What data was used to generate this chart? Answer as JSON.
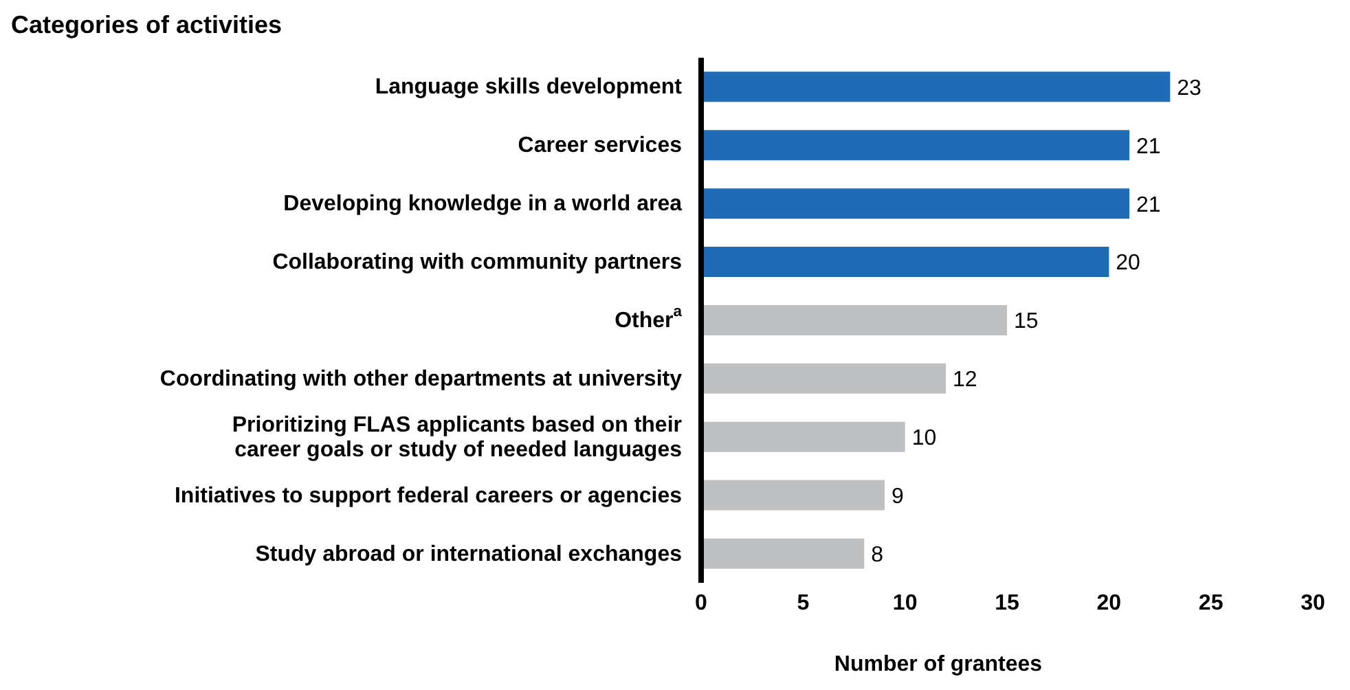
{
  "chart_data": {
    "type": "bar",
    "orientation": "horizontal",
    "title": "Categories of activities",
    "xlabel": "Number of grantees",
    "categories": [
      "Language skills development",
      "Career services",
      "Developing knowledge in a world area",
      "Collaborating with community partners",
      "Other$^{a}$",
      "Coordinating with other departments at university",
      "Prioritizing FLAS applicants based on their\ncareer goals or study of needed languages",
      "Initiatives to support federal careers or agencies",
      "Study abroad or international exchanges"
    ],
    "values": [
      23,
      21,
      21,
      20,
      15,
      12,
      10,
      9,
      8
    ],
    "colors": [
      "#1f6bb5",
      "#1f6bb5",
      "#1f6bb5",
      "#1f6bb5",
      "#bfc0c2",
      "#bfc0c2",
      "#bfc0c2",
      "#bfc0c2",
      "#bfc0c2"
    ],
    "xlim": [
      0,
      30
    ],
    "xticks": [
      0,
      5,
      10,
      15,
      20,
      25,
      30
    ],
    "data_labels": true
  }
}
